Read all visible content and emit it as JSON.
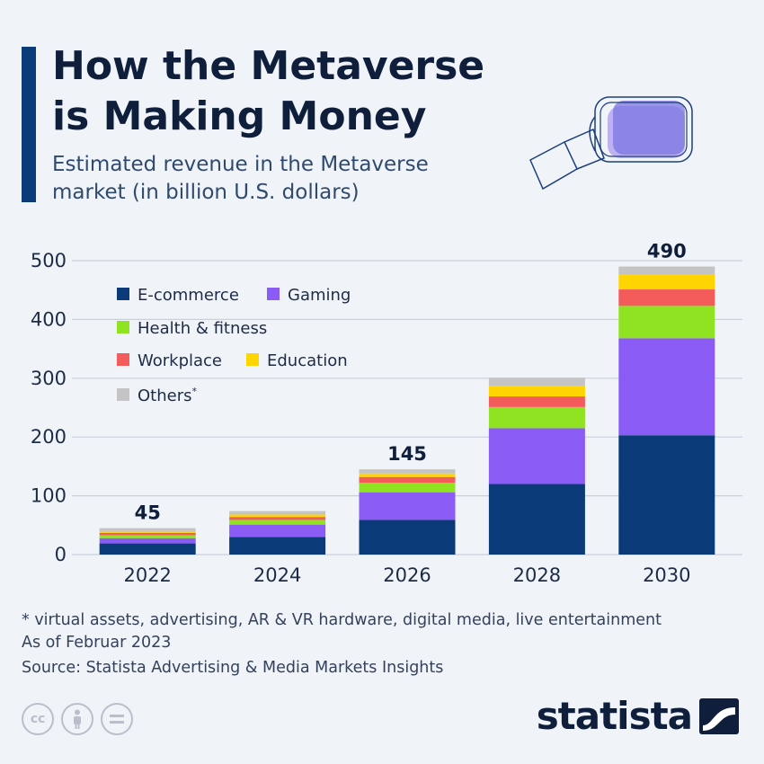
{
  "header": {
    "title_line1": "How the Metaverse",
    "title_line2": "is Making Money",
    "subtitle_line1": "Estimated revenue in the Metaverse",
    "subtitle_line2": "market (in billion U.S. dollars)"
  },
  "chart_data": {
    "type": "bar",
    "stacked": true,
    "categories": [
      "2022",
      "2024",
      "2026",
      "2028",
      "2030"
    ],
    "totals": [
      45,
      74,
      145,
      301,
      490
    ],
    "total_labels": [
      "45",
      "",
      "145",
      "",
      "490"
    ],
    "ylim": [
      0,
      500
    ],
    "yticks": [
      0,
      100,
      200,
      300,
      400,
      500
    ],
    "grid": true,
    "legend_position": "top-left",
    "series": [
      {
        "name": "E-commerce",
        "color": "#0b3a78",
        "values": [
          19,
          30,
          59,
          120,
          203
        ]
      },
      {
        "name": "Gaming",
        "color": "#8a5cf5",
        "values": [
          9,
          21,
          47,
          95,
          165
        ]
      },
      {
        "name": "Health & fitness",
        "color": "#8fe320",
        "values": [
          5,
          8,
          16,
          36,
          55
        ]
      },
      {
        "name": "Workplace",
        "color": "#f45b5b",
        "values": [
          4,
          5,
          10,
          18,
          28
        ]
      },
      {
        "name": "Education",
        "color": "#ffd500",
        "values": [
          3,
          4,
          6,
          18,
          26
        ]
      },
      {
        "name": "Others*",
        "color": "#c4c4c4",
        "values": [
          5,
          6,
          7,
          14,
          13
        ]
      }
    ]
  },
  "footer": {
    "note_line1": "* virtual assets, advertising, AR & VR hardware, digital media, live entertainment",
    "note_line2": "As of Februar 2023",
    "source": "Source: Statista Advertising & Media Markets Insights",
    "brand": "statista",
    "license_icons": [
      "cc-icon",
      "attribution-icon",
      "no-derivatives-icon"
    ]
  }
}
